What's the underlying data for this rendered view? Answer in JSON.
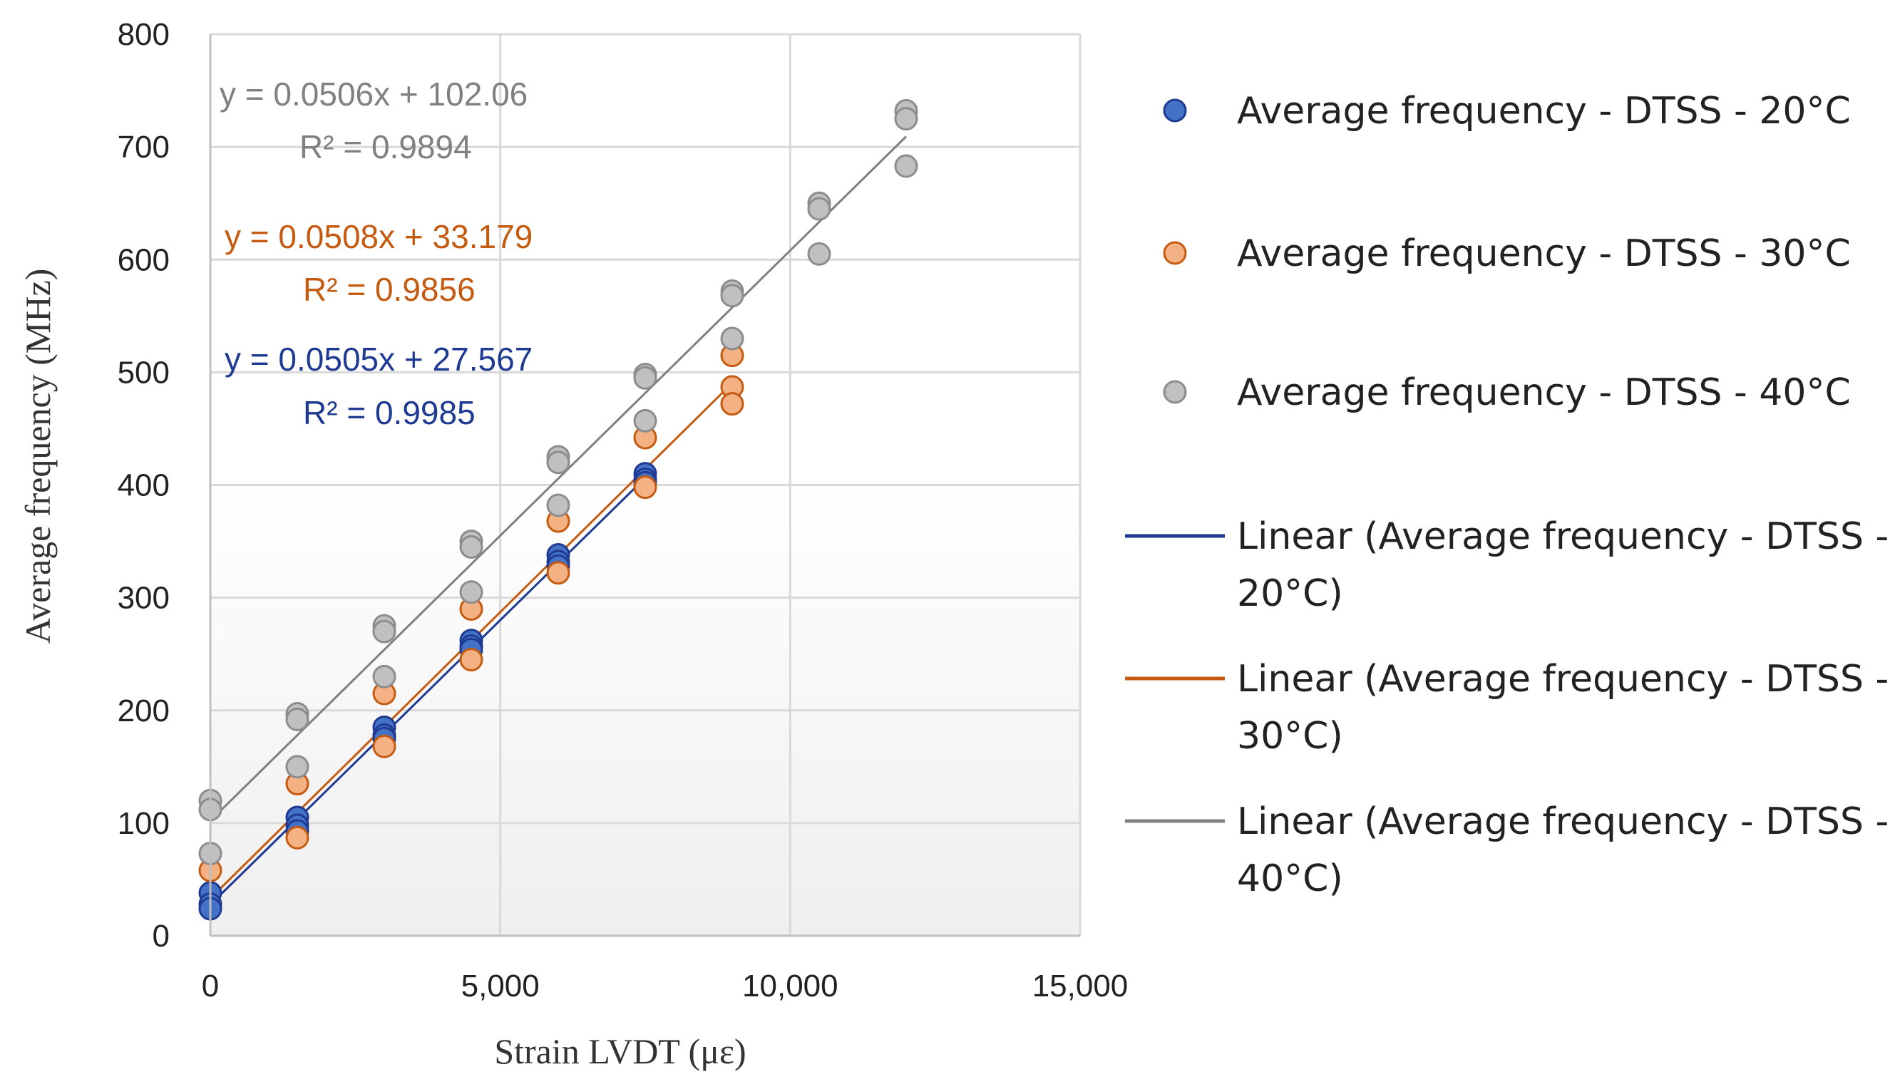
{
  "chart_data": {
    "type": "scatter",
    "xlabel": "Strain LVDT (με)",
    "ylabel": "Average frequency (MHz)",
    "xlim": [
      0,
      15000
    ],
    "ylim": [
      0,
      800
    ],
    "xticks": [
      0,
      5000,
      10000,
      15000
    ],
    "xtick_labels": [
      "0",
      "5,000",
      "10,000",
      "15,000"
    ],
    "yticks": [
      0,
      100,
      200,
      300,
      400,
      500,
      600,
      700,
      800
    ],
    "ytick_labels": [
      "0",
      "100",
      "200",
      "300",
      "400",
      "500",
      "600",
      "700",
      "800"
    ],
    "grid": true,
    "legend_position": "right",
    "series": [
      {
        "name": "Average frequency - DTSS - 20°C",
        "color": "#4472C4",
        "edge_color": "#1F3A93",
        "points": [
          [
            0,
            38
          ],
          [
            0,
            28
          ],
          [
            0,
            24
          ],
          [
            1500,
            105
          ],
          [
            1500,
            98
          ],
          [
            1500,
            93
          ],
          [
            3000,
            185
          ],
          [
            3000,
            178
          ],
          [
            3000,
            175
          ],
          [
            4500,
            262
          ],
          [
            4500,
            257
          ],
          [
            4500,
            254
          ],
          [
            6000,
            338
          ],
          [
            6000,
            332
          ],
          [
            6000,
            328
          ],
          [
            7500,
            410
          ],
          [
            7500,
            405
          ],
          [
            7500,
            402
          ]
        ]
      },
      {
        "name": "Average frequency - DTSS - 30°C",
        "color": "#F4B183",
        "edge_color": "#C55A11",
        "points": [
          [
            0,
            58
          ],
          [
            1500,
            135
          ],
          [
            1500,
            87
          ],
          [
            3000,
            215
          ],
          [
            3000,
            168
          ],
          [
            4500,
            290
          ],
          [
            4500,
            245
          ],
          [
            6000,
            368
          ],
          [
            6000,
            322
          ],
          [
            7500,
            442
          ],
          [
            7500,
            398
          ],
          [
            9000,
            515
          ],
          [
            9000,
            487
          ],
          [
            9000,
            472
          ]
        ]
      },
      {
        "name": "Average frequency - DTSS - 40°C",
        "color": "#C0C0C0",
        "edge_color": "#8C8C8C",
        "points": [
          [
            0,
            120
          ],
          [
            0,
            112
          ],
          [
            0,
            73
          ],
          [
            1500,
            197
          ],
          [
            1500,
            192
          ],
          [
            1500,
            150
          ],
          [
            3000,
            275
          ],
          [
            3000,
            270
          ],
          [
            3000,
            230
          ],
          [
            4500,
            350
          ],
          [
            4500,
            345
          ],
          [
            4500,
            305
          ],
          [
            6000,
            425
          ],
          [
            6000,
            420
          ],
          [
            6000,
            382
          ],
          [
            7500,
            498
          ],
          [
            7500,
            495
          ],
          [
            7500,
            457
          ],
          [
            9000,
            572
          ],
          [
            9000,
            568
          ],
          [
            9000,
            530
          ],
          [
            10500,
            650
          ],
          [
            10500,
            645
          ],
          [
            10500,
            605
          ],
          [
            12000,
            732
          ],
          [
            12000,
            725
          ],
          [
            12000,
            683
          ]
        ]
      }
    ],
    "trendlines": [
      {
        "name": "Linear (Average frequency - DTSS - 20°C)",
        "legend_lines": [
          "Linear (Average frequency - DTSS -",
          "20°C)"
        ],
        "slope": 0.0505,
        "intercept": 27.567,
        "x_range": [
          0,
          7500
        ],
        "color": "#1F3A93",
        "equation": "y = 0.0505x + 27.567",
        "r2": "R² = 0.9985"
      },
      {
        "name": "Linear (Average frequency - DTSS - 30°C)",
        "legend_lines": [
          "Linear (Average frequency - DTSS -",
          "30°C)"
        ],
        "slope": 0.0508,
        "intercept": 33.179,
        "x_range": [
          0,
          9000
        ],
        "color": "#C55A11",
        "equation": "y = 0.0508x + 33.179",
        "r2": "R² = 0.9856"
      },
      {
        "name": "Linear (Average frequency - DTSS - 40°C)",
        "legend_lines": [
          "Linear (Average frequency - DTSS -",
          "40°C)"
        ],
        "slope": 0.0506,
        "intercept": 102.06,
        "x_range": [
          0,
          12000
        ],
        "color": "#808080",
        "equation": "y = 0.0506x + 102.06",
        "r2": "R² = 0.9894"
      }
    ]
  }
}
